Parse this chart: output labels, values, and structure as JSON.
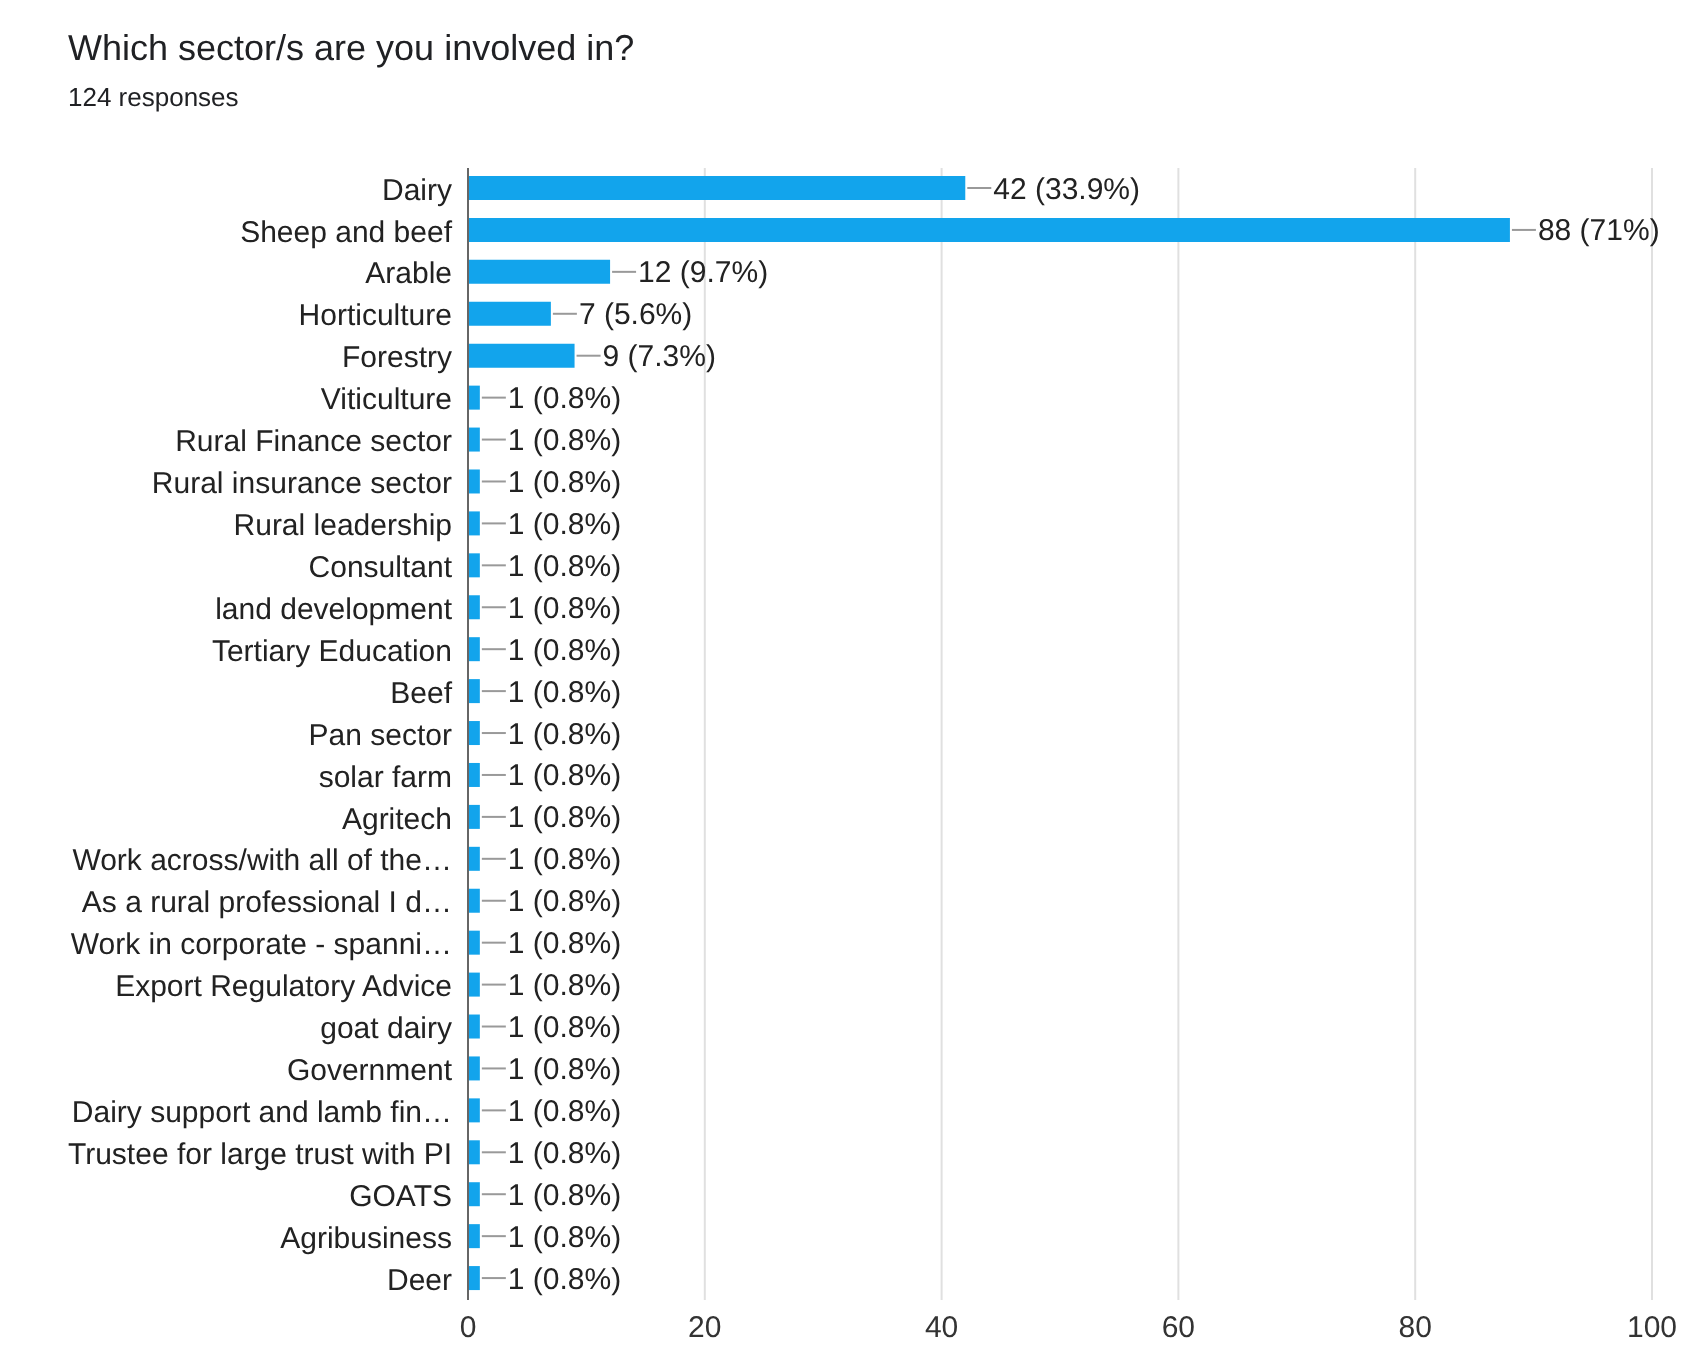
{
  "chart_data": {
    "type": "bar",
    "orientation": "horizontal",
    "title": "Which sector/s are you involved in?",
    "subtitle": "124 responses",
    "categories": [
      "Dairy",
      "Sheep and beef",
      "Arable",
      "Horticulture",
      "Forestry",
      "Viticulture",
      "Rural Finance sector",
      "Rural insurance sector",
      "Rural leadership",
      "Consultant",
      "land development",
      "Tertiary Education",
      "Beef",
      "Pan sector",
      "solar farm",
      "Agritech",
      "Work across/with all of the…",
      "As a rural professional I d…",
      "Work in corporate - spanni…",
      "Export Regulatory Advice",
      "goat dairy",
      "Government",
      "Dairy support and lamb fin…",
      "Trustee for large trust with PI",
      "GOATS",
      "Agribusiness",
      "Deer"
    ],
    "values": [
      42,
      88,
      12,
      7,
      9,
      1,
      1,
      1,
      1,
      1,
      1,
      1,
      1,
      1,
      1,
      1,
      1,
      1,
      1,
      1,
      1,
      1,
      1,
      1,
      1,
      1,
      1
    ],
    "value_labels": [
      "42 (33.9%)",
      "88 (71%)",
      "12 (9.7%)",
      "7 (5.6%)",
      "9 (7.3%)",
      "1 (0.8%)",
      "1 (0.8%)",
      "1 (0.8%)",
      "1 (0.8%)",
      "1 (0.8%)",
      "1 (0.8%)",
      "1 (0.8%)",
      "1 (0.8%)",
      "1 (0.8%)",
      "1 (0.8%)",
      "1 (0.8%)",
      "1 (0.8%)",
      "1 (0.8%)",
      "1 (0.8%)",
      "1 (0.8%)",
      "1 (0.8%)",
      "1 (0.8%)",
      "1 (0.8%)",
      "1 (0.8%)",
      "1 (0.8%)",
      "1 (0.8%)",
      "1 (0.8%)"
    ],
    "color": "#12a4ec",
    "xlim": [
      0,
      100
    ],
    "xticks": [
      0,
      20,
      40,
      60,
      80,
      100
    ],
    "grid": "x"
  }
}
